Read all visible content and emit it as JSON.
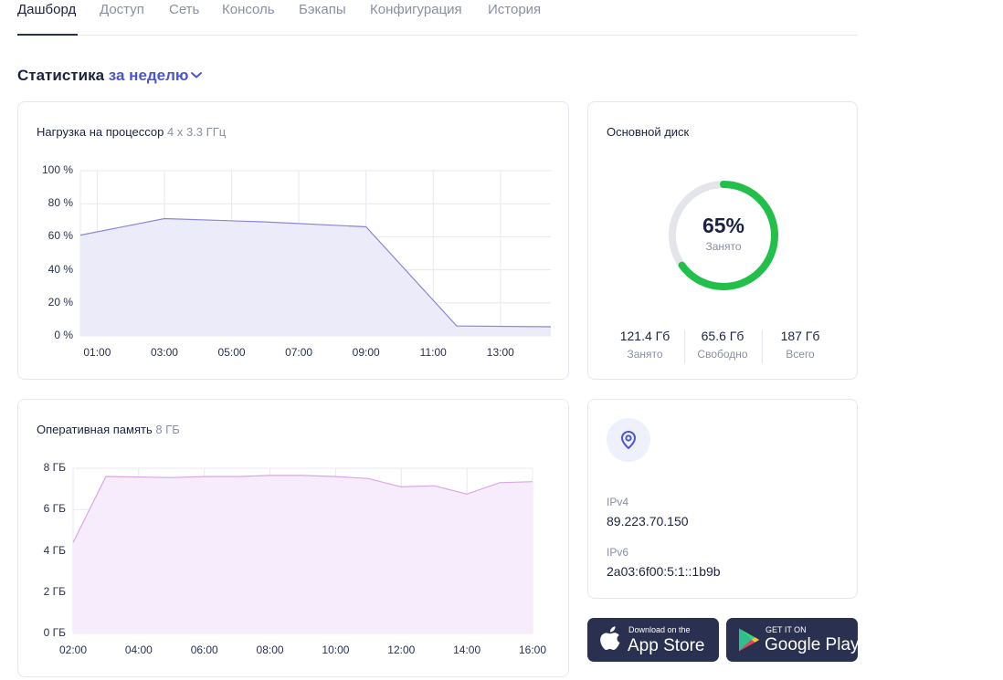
{
  "tabs": [
    {
      "label": "Дашборд",
      "active": true
    },
    {
      "label": "Доступ"
    },
    {
      "label": "Сеть"
    },
    {
      "label": "Консоль"
    },
    {
      "label": "Бэкапы"
    },
    {
      "label": "Конфигурация"
    },
    {
      "label": "История"
    }
  ],
  "stats": {
    "title": "Статистика",
    "period": "за неделю"
  },
  "cpu": {
    "title": "Нагрузка на процессор",
    "subtitle": "4 x 3.3 ГГц",
    "chart_data": {
      "type": "area",
      "title": "Нагрузка на процессор",
      "ylabel": "%",
      "ylim": [
        0,
        100
      ],
      "yticks": [
        "100 %",
        "80 %",
        "60 %",
        "40 %",
        "20 %",
        "0 %"
      ],
      "xticks": [
        "01:00",
        "03:00",
        "05:00",
        "07:00",
        "09:00",
        "11:00",
        "13:00"
      ],
      "xlim": [
        0.5,
        14.5
      ],
      "x": [
        0.5,
        3.0,
        6.0,
        9.0,
        11.7,
        14.5
      ],
      "values": [
        61,
        71,
        69,
        66,
        6,
        5.5
      ],
      "color": "#8b86d9",
      "fill": "#ecebfa"
    }
  },
  "disk": {
    "title": "Основной диск",
    "percent_label": "65%",
    "percent": 65,
    "center_label": "Занято",
    "stats": [
      {
        "value": "121.4 Гб",
        "label": "Занято"
      },
      {
        "value": "65.6 Гб",
        "label": "Свободно"
      },
      {
        "value": "187 Гб",
        "label": "Всего"
      }
    ],
    "ring_color": "#22c04a",
    "track_color": "#e4e5ea"
  },
  "ram": {
    "title": "Оперативная память",
    "subtitle": "8 ГБ",
    "chart_data": {
      "type": "area",
      "title": "Оперативная память",
      "ylabel": "ГБ",
      "ylim": [
        0,
        8
      ],
      "yticks": [
        "8 ГБ",
        "6 ГБ",
        "4 ГБ",
        "2 ГБ",
        "0 ГБ"
      ],
      "xticks": [
        "02:00",
        "04:00",
        "06:00",
        "08:00",
        "10:00",
        "12:00",
        "14:00",
        "16:00"
      ],
      "xlim": [
        2,
        16
      ],
      "x": [
        2,
        3,
        5,
        6,
        7,
        8,
        9,
        10,
        11,
        12,
        13,
        14,
        15,
        16
      ],
      "values": [
        4.4,
        7.6,
        7.55,
        7.6,
        7.6,
        7.65,
        7.65,
        7.6,
        7.5,
        7.1,
        7.15,
        6.75,
        7.3,
        7.35
      ],
      "color": "#d9a7e6",
      "fill": "#f7ecfb"
    }
  },
  "network": {
    "ipv4_label": "IPv4",
    "ipv4": "89.223.70.150",
    "ipv6_label": "IPv6",
    "ipv6": "2a03:6f00:5:1::1b9b"
  },
  "stores": {
    "appstore": {
      "small": "Download on the",
      "big": "App Store",
      "icon": "apple-icon"
    },
    "googleplay": {
      "small": "GET IT ON",
      "big": "Google Play",
      "icon": "google-play-icon"
    }
  }
}
